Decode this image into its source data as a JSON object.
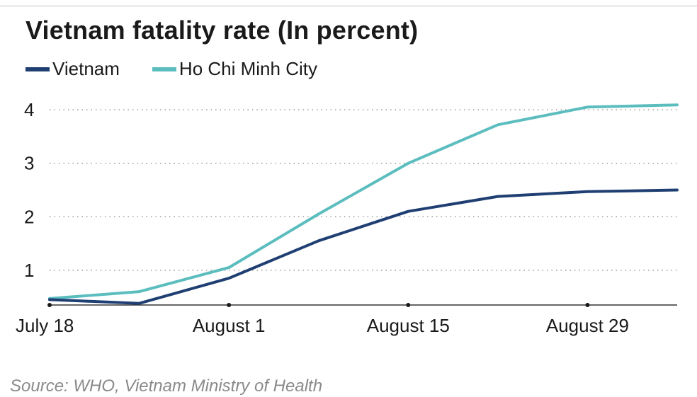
{
  "chart_data": {
    "type": "line",
    "title": "Vietnam fatality rate (In percent)",
    "x": [
      "2021-07-18",
      "2021-07-25",
      "2021-08-01",
      "2021-08-08",
      "2021-08-15",
      "2021-08-22",
      "2021-08-29",
      "2021-09-05"
    ],
    "x_tick_labels": [
      "July 18",
      "August 1",
      "August 15",
      "August 29"
    ],
    "y_ticks": [
      1,
      2,
      3,
      4
    ],
    "ylim": [
      0.35,
      4.2
    ],
    "grid": "horizontal dotted",
    "legend_position": "top-left",
    "series": [
      {
        "name": "Vietnam",
        "color": "#1f3f73",
        "values": [
          0.45,
          0.38,
          0.85,
          1.55,
          2.1,
          2.38,
          2.47,
          2.5
        ]
      },
      {
        "name": "Ho Chi Minh City",
        "color": "#5cbdbf",
        "values": [
          0.47,
          0.6,
          1.05,
          2.05,
          3.0,
          3.72,
          4.05,
          4.09
        ]
      }
    ]
  },
  "source": "Source: WHO, Vietnam Ministry of Health"
}
